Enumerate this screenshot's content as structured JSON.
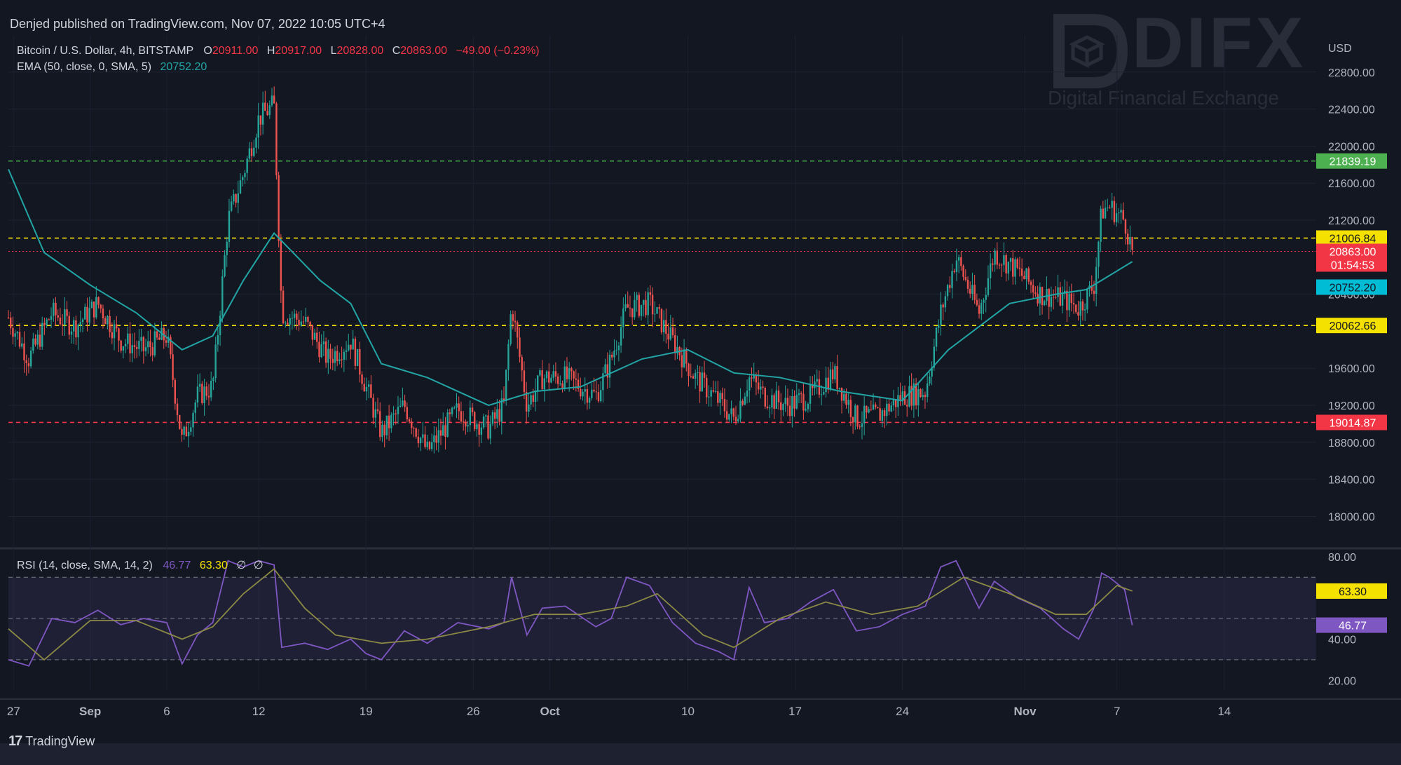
{
  "header": {
    "published": "Denjed published on TradingView.com, Nov 07, 2022 10:05 UTC+4"
  },
  "legend": {
    "symbol": "Bitcoin / U.S. Dollar, 4h, BITSTAMP",
    "o_label": "O",
    "o_value": "20911.00",
    "h_label": "H",
    "h_value": "20917.00",
    "l_label": "L",
    "l_value": "20828.00",
    "c_label": "C",
    "c_value": "20863.00",
    "change": "−49.00 (−0.23%)",
    "ema_label": "EMA (50, close, 0, SMA, 5)",
    "ema_value": "20752.20"
  },
  "rsi_legend": {
    "label": "RSI (14, close, SMA, 14, 2)",
    "rsi_value": "46.77",
    "ma_value": "63.30",
    "na1": "∅",
    "na2": "∅"
  },
  "watermark": {
    "name": "DIFX",
    "tagline": "Digital Financial Exchange"
  },
  "footer": {
    "brand": "TradingView",
    "logo_glyph": "17"
  },
  "colors": {
    "background": "#131722",
    "up": "#26a69a",
    "down": "#ef5350",
    "ema": "#22a5a5",
    "rsi": "#7e57c2",
    "rsi_ma": "#8a8a45",
    "yellow_level": "#f5e100",
    "green_level": "#4caf50",
    "red_level": "#f23645",
    "text": "#d1d4dc",
    "price_red": "#f23645"
  },
  "chart_data": [
    {
      "type": "candlestick",
      "title": "Bitcoin / U.S. Dollar, 4h, BITSTAMP",
      "currency": "USD",
      "y_ticks": [
        "22800.00",
        "22400.00",
        "22000.00",
        "21600.00",
        "21200.00",
        "20400.00",
        "19600.00",
        "19200.00",
        "18800.00",
        "18400.00",
        "18000.00"
      ],
      "ylim": [
        17670,
        23200
      ],
      "x_labels": [
        {
          "label": "27",
          "date": "2022-08-27"
        },
        {
          "label": "Sep",
          "date": "2022-09-01"
        },
        {
          "label": "6",
          "date": "2022-09-06"
        },
        {
          "label": "12",
          "date": "2022-09-12"
        },
        {
          "label": "19",
          "date": "2022-09-19"
        },
        {
          "label": "26",
          "date": "2022-09-26"
        },
        {
          "label": "Oct",
          "date": "2022-10-01"
        },
        {
          "label": "10",
          "date": "2022-10-10"
        },
        {
          "label": "17",
          "date": "2022-10-17"
        },
        {
          "label": "24",
          "date": "2022-10-24"
        },
        {
          "label": "Nov",
          "date": "2022-11-01"
        },
        {
          "label": "7",
          "date": "2022-11-07"
        },
        {
          "label": "14",
          "date": "2022-11-14"
        }
      ],
      "xlim": [
        "2022-08-26T16:00",
        "2022-11-20T00:00"
      ],
      "horizontal_levels": [
        {
          "value": 21839.19,
          "label": "21839.19",
          "color": "#4caf50",
          "style": "dashed"
        },
        {
          "value": 21006.84,
          "label": "21006.84",
          "color": "#f5e100",
          "style": "dashed"
        },
        {
          "value": 20062.66,
          "label": "20062.66",
          "color": "#f5e100",
          "style": "dashed"
        },
        {
          "value": 19014.87,
          "label": "19014.87",
          "color": "#f23645",
          "style": "dashed"
        }
      ],
      "last_price": {
        "value": 20863.0,
        "label": "20863.00",
        "countdown": "01:54:53"
      },
      "ema_label": {
        "value": 20752.2,
        "label": "20752.20"
      },
      "price_path": [
        [
          "2022-08-26T16:00",
          20150
        ],
        [
          "2022-08-28T00:00",
          19700
        ],
        [
          "2022-08-29T12:00",
          20200
        ],
        [
          "2022-08-31T00:00",
          20050
        ],
        [
          "2022-09-01T12:00",
          20300
        ],
        [
          "2022-09-03T00:00",
          19900
        ],
        [
          "2022-09-04T12:00",
          19800
        ],
        [
          "2022-09-06T00:00",
          19950
        ],
        [
          "2022-09-07T00:00",
          18800
        ],
        [
          "2022-09-08T00:00",
          19300
        ],
        [
          "2022-09-09T00:00",
          19400
        ],
        [
          "2022-09-10T00:00",
          21200
        ],
        [
          "2022-09-11T00:00",
          21700
        ],
        [
          "2022-09-12T00:00",
          22300
        ],
        [
          "2022-09-13T00:00",
          22450
        ],
        [
          "2022-09-13T12:00",
          20200
        ],
        [
          "2022-09-15T00:00",
          20100
        ],
        [
          "2022-09-16T12:00",
          19700
        ],
        [
          "2022-09-18T00:00",
          19900
        ],
        [
          "2022-09-19T00:00",
          19400
        ],
        [
          "2022-09-20T00:00",
          18900
        ],
        [
          "2022-09-21T12:00",
          19200
        ],
        [
          "2022-09-23T00:00",
          18700
        ],
        [
          "2022-09-25T00:00",
          19150
        ],
        [
          "2022-09-27T00:00",
          18950
        ],
        [
          "2022-09-28T00:00",
          19200
        ],
        [
          "2022-09-28T12:00",
          20300
        ],
        [
          "2022-09-29T12:00",
          19200
        ],
        [
          "2022-09-30T12:00",
          19500
        ],
        [
          "2022-10-02T00:00",
          19500
        ],
        [
          "2022-10-04T00:00",
          19300
        ],
        [
          "2022-10-05T00:00",
          19700
        ],
        [
          "2022-10-06T00:00",
          20250
        ],
        [
          "2022-10-07T12:00",
          20300
        ],
        [
          "2022-10-09T00:00",
          19900
        ],
        [
          "2022-10-10T12:00",
          19500
        ],
        [
          "2022-10-12T00:00",
          19250
        ],
        [
          "2022-10-13T00:00",
          19050
        ],
        [
          "2022-10-14T00:00",
          19500
        ],
        [
          "2022-10-15T00:00",
          19300
        ],
        [
          "2022-10-16T12:00",
          19200
        ],
        [
          "2022-10-18T00:00",
          19300
        ],
        [
          "2022-10-19T12:00",
          19550
        ],
        [
          "2022-10-21T00:00",
          19050
        ],
        [
          "2022-10-22T12:00",
          19100
        ],
        [
          "2022-10-24T00:00",
          19300
        ],
        [
          "2022-10-25T12:00",
          19350
        ],
        [
          "2022-10-26T12:00",
          20200
        ],
        [
          "2022-10-27T12:00",
          20800
        ],
        [
          "2022-10-29T00:00",
          20200
        ],
        [
          "2022-10-30T00:00",
          20850
        ],
        [
          "2022-10-31T12:00",
          20650
        ],
        [
          "2022-11-02T00:00",
          20400
        ],
        [
          "2022-11-03T12:00",
          20350
        ],
        [
          "2022-11-04T12:00",
          20250
        ],
        [
          "2022-11-05T12:00",
          20500
        ],
        [
          "2022-11-06T00:00",
          21300
        ],
        [
          "2022-11-06T12:00",
          21350
        ],
        [
          "2022-11-07T12:00",
          21200
        ],
        [
          "2022-11-08T00:00",
          20863
        ]
      ],
      "ema_path": [
        [
          "2022-08-26T16:00",
          21750
        ],
        [
          "2022-08-29T00:00",
          20850
        ],
        [
          "2022-09-01T00:00",
          20500
        ],
        [
          "2022-09-04T00:00",
          20200
        ],
        [
          "2022-09-07T00:00",
          19800
        ],
        [
          "2022-09-09T00:00",
          19950
        ],
        [
          "2022-09-11T00:00",
          20550
        ],
        [
          "2022-09-13T00:00",
          21060
        ],
        [
          "2022-09-16T00:00",
          20550
        ],
        [
          "2022-09-18T00:00",
          20300
        ],
        [
          "2022-09-20T00:00",
          19650
        ],
        [
          "2022-09-23T00:00",
          19500
        ],
        [
          "2022-09-27T00:00",
          19200
        ],
        [
          "2022-09-30T00:00",
          19350
        ],
        [
          "2022-10-03T00:00",
          19400
        ],
        [
          "2022-10-07T00:00",
          19700
        ],
        [
          "2022-10-10T00:00",
          19800
        ],
        [
          "2022-10-13T00:00",
          19550
        ],
        [
          "2022-10-16T00:00",
          19500
        ],
        [
          "2022-10-20T00:00",
          19350
        ],
        [
          "2022-10-24T00:00",
          19250
        ],
        [
          "2022-10-27T00:00",
          19800
        ],
        [
          "2022-10-31T00:00",
          20300
        ],
        [
          "2022-11-03T00:00",
          20400
        ],
        [
          "2022-11-05T00:00",
          20450
        ],
        [
          "2022-11-08T00:00",
          20752
        ]
      ]
    },
    {
      "type": "line",
      "title": "RSI (14, close, SMA, 14, 2)",
      "y_ticks": [
        "80.00",
        "40.00",
        "20.00"
      ],
      "ylim": [
        15,
        83
      ],
      "bands": {
        "upper": 70,
        "middle": 50,
        "lower": 30
      },
      "last_values": [
        {
          "value": 63.3,
          "label": "63.30",
          "color": "#f5e100"
        },
        {
          "value": 46.77,
          "label": "46.77",
          "color": "#7e57c2"
        }
      ],
      "series": [
        {
          "name": "RSI",
          "values": [
            [
              "2022-08-26T16:00",
              30
            ],
            [
              "2022-08-28T00:00",
              27
            ],
            [
              "2022-08-29T12:00",
              50
            ],
            [
              "2022-08-31T00:00",
              48
            ],
            [
              "2022-09-01T12:00",
              54
            ],
            [
              "2022-09-03T00:00",
              47
            ],
            [
              "2022-09-04T12:00",
              50
            ],
            [
              "2022-09-06T00:00",
              48
            ],
            [
              "2022-09-07T00:00",
              28
            ],
            [
              "2022-09-08T00:00",
              42
            ],
            [
              "2022-09-09T00:00",
              48
            ],
            [
              "2022-09-10T00:00",
              78
            ],
            [
              "2022-09-11T00:00",
              75
            ],
            [
              "2022-09-12T00:00",
              78
            ],
            [
              "2022-09-13T00:00",
              76
            ],
            [
              "2022-09-13T12:00",
              36
            ],
            [
              "2022-09-15T00:00",
              38
            ],
            [
              "2022-09-16T12:00",
              35
            ],
            [
              "2022-09-18T00:00",
              40
            ],
            [
              "2022-09-19T00:00",
              33
            ],
            [
              "2022-09-20T00:00",
              30
            ],
            [
              "2022-09-21T12:00",
              44
            ],
            [
              "2022-09-23T00:00",
              38
            ],
            [
              "2022-09-25T00:00",
              48
            ],
            [
              "2022-09-27T00:00",
              45
            ],
            [
              "2022-09-28T00:00",
              48
            ],
            [
              "2022-09-28T12:00",
              70
            ],
            [
              "2022-09-29T12:00",
              42
            ],
            [
              "2022-09-30T12:00",
              55
            ],
            [
              "2022-10-02T00:00",
              56
            ],
            [
              "2022-10-04T00:00",
              46
            ],
            [
              "2022-10-05T00:00",
              50
            ],
            [
              "2022-10-06T00:00",
              70
            ],
            [
              "2022-10-07T12:00",
              66
            ],
            [
              "2022-10-09T00:00",
              48
            ],
            [
              "2022-10-10T12:00",
              38
            ],
            [
              "2022-10-12T00:00",
              34
            ],
            [
              "2022-10-13T00:00",
              30
            ],
            [
              "2022-10-14T00:00",
              65
            ],
            [
              "2022-10-15T00:00",
              48
            ],
            [
              "2022-10-16T12:00",
              50
            ],
            [
              "2022-10-18T00:00",
              58
            ],
            [
              "2022-10-19T12:00",
              64
            ],
            [
              "2022-10-21T00:00",
              44
            ],
            [
              "2022-10-22T12:00",
              46
            ],
            [
              "2022-10-24T00:00",
              52
            ],
            [
              "2022-10-25T12:00",
              56
            ],
            [
              "2022-10-26T12:00",
              75
            ],
            [
              "2022-10-27T12:00",
              78
            ],
            [
              "2022-10-29T00:00",
              55
            ],
            [
              "2022-10-30T00:00",
              68
            ],
            [
              "2022-10-31T12:00",
              60
            ],
            [
              "2022-11-02T00:00",
              55
            ],
            [
              "2022-11-03T12:00",
              45
            ],
            [
              "2022-11-04T12:00",
              40
            ],
            [
              "2022-11-05T12:00",
              55
            ],
            [
              "2022-11-06T00:00",
              72
            ],
            [
              "2022-11-06T12:00",
              70
            ],
            [
              "2022-11-07T12:00",
              64
            ],
            [
              "2022-11-08T00:00",
              46.77
            ]
          ]
        },
        {
          "name": "RSI-based MA",
          "values": [
            [
              "2022-08-26T16:00",
              45
            ],
            [
              "2022-08-29T00:00",
              30
            ],
            [
              "2022-09-01T00:00",
              49
            ],
            [
              "2022-09-04T00:00",
              49
            ],
            [
              "2022-09-07T00:00",
              40
            ],
            [
              "2022-09-09T00:00",
              46
            ],
            [
              "2022-09-11T00:00",
              62
            ],
            [
              "2022-09-13T00:00",
              74
            ],
            [
              "2022-09-15T00:00",
              55
            ],
            [
              "2022-09-17T00:00",
              42
            ],
            [
              "2022-09-20T00:00",
              38
            ],
            [
              "2022-09-23T00:00",
              40
            ],
            [
              "2022-09-27T00:00",
              46
            ],
            [
              "2022-09-30T00:00",
              52
            ],
            [
              "2022-10-03T00:00",
              52
            ],
            [
              "2022-10-06T00:00",
              56
            ],
            [
              "2022-10-08T00:00",
              62
            ],
            [
              "2022-10-11T00:00",
              42
            ],
            [
              "2022-10-13T00:00",
              36
            ],
            [
              "2022-10-16T00:00",
              50
            ],
            [
              "2022-10-19T00:00",
              58
            ],
            [
              "2022-10-22T00:00",
              52
            ],
            [
              "2022-10-25T00:00",
              56
            ],
            [
              "2022-10-28T00:00",
              70
            ],
            [
              "2022-10-31T00:00",
              62
            ],
            [
              "2022-11-03T00:00",
              52
            ],
            [
              "2022-11-05T00:00",
              52
            ],
            [
              "2022-11-07T00:00",
              66
            ],
            [
              "2022-11-08T00:00",
              63.3
            ]
          ]
        }
      ]
    }
  ]
}
